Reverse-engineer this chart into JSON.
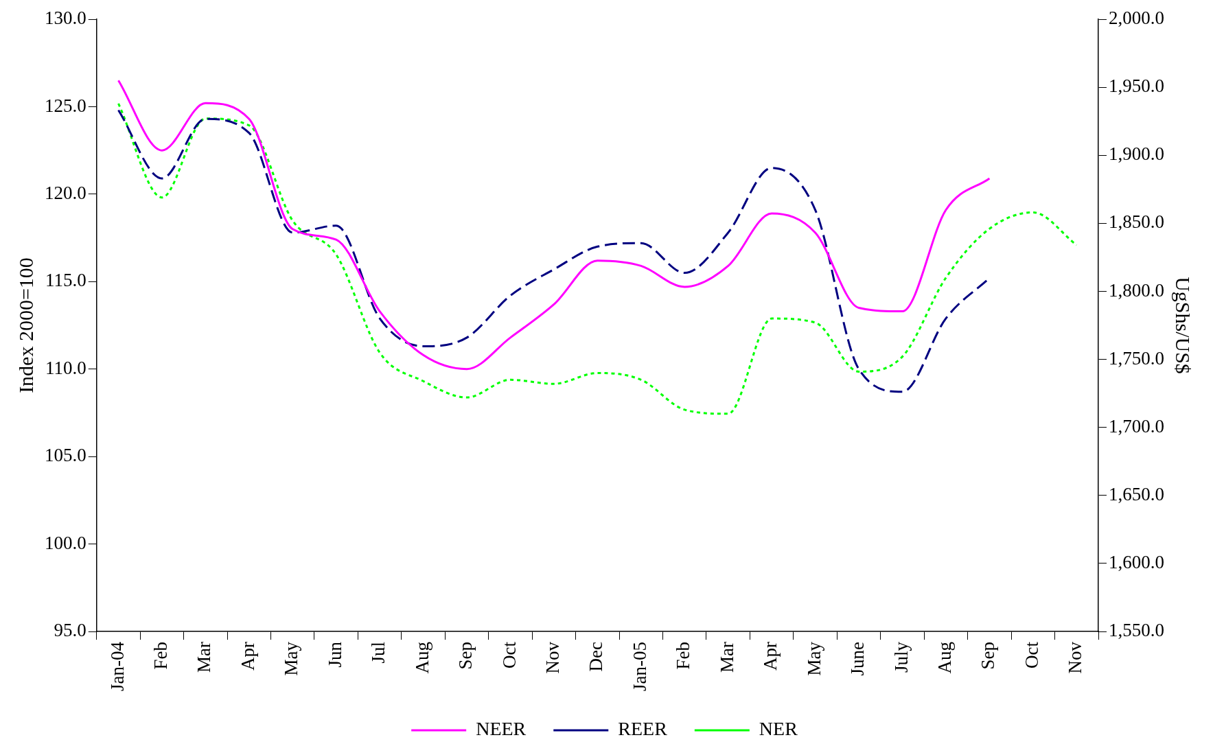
{
  "chart_data": {
    "type": "line",
    "ylabel": "Index 2000=100",
    "y2label": "UgShs/US$",
    "categories": [
      "Jan-04",
      "Feb",
      "Mar",
      "Apr",
      "May",
      "Jun",
      "Jul",
      "Aug",
      "Sep",
      "Oct",
      "Nov",
      "Dec",
      "Jan-05",
      "Feb",
      "Mar",
      "Apr",
      "May",
      "June",
      "July",
      "Aug",
      "Sep",
      "Oct",
      "Nov"
    ],
    "series": [
      {
        "name": "NEER",
        "color": "#ff00ff",
        "line_style": "solid",
        "values": [
          126.5,
          122.5,
          125.2,
          124.3,
          118.0,
          117.4,
          113.3,
          110.8,
          110.0,
          111.8,
          113.7,
          116.2,
          115.9,
          114.7,
          115.9,
          118.9,
          117.8,
          113.5,
          113.3,
          119.1,
          120.9,
          null,
          null
        ]
      },
      {
        "name": "REER",
        "color": "#000080",
        "line_style": "dashed",
        "values": [
          124.8,
          120.9,
          124.3,
          123.5,
          117.8,
          118.2,
          112.9,
          111.3,
          111.8,
          114.2,
          115.7,
          117.0,
          117.2,
          115.5,
          117.8,
          121.5,
          119.1,
          110.0,
          108.7,
          112.9,
          115.2,
          null,
          null
        ]
      },
      {
        "name": "NER",
        "color": "#00ff00",
        "line_style": "dotted",
        "axis": "y2",
        "values": [
          1938,
          1869,
          1927,
          1922,
          1852,
          1827,
          1755,
          1734,
          1722,
          1735,
          1732,
          1740,
          1735,
          1713,
          1710,
          1780,
          1777,
          1741,
          1752,
          1810,
          1846,
          1858,
          1834
        ]
      }
    ],
    "ylim": [
      95,
      130
    ],
    "yticks": [
      {
        "value": 95,
        "label": "95.0"
      },
      {
        "value": 100,
        "label": "100.0"
      },
      {
        "value": 105,
        "label": "105.0"
      },
      {
        "value": 110,
        "label": "110.0"
      },
      {
        "value": 115,
        "label": "115.0"
      },
      {
        "value": 120,
        "label": "120.0"
      },
      {
        "value": 125,
        "label": "125.0"
      },
      {
        "value": 130,
        "label": "130.0"
      }
    ],
    "y2lim": [
      1550,
      2000
    ],
    "y2ticks": [
      {
        "value": 1550,
        "label": "1,550.0"
      },
      {
        "value": 1600,
        "label": "1,600.0"
      },
      {
        "value": 1650,
        "label": "1,650.0"
      },
      {
        "value": 1700,
        "label": "1,700.0"
      },
      {
        "value": 1750,
        "label": "1,750.0"
      },
      {
        "value": 1800,
        "label": "1,800.0"
      },
      {
        "value": 1850,
        "label": "1,850.0"
      },
      {
        "value": 1900,
        "label": "1,900.0"
      },
      {
        "value": 1950,
        "label": "1,950.0"
      },
      {
        "value": 2000,
        "label": "2,000.0"
      }
    ],
    "grid": false,
    "legend": "bottom",
    "marker": "none"
  }
}
